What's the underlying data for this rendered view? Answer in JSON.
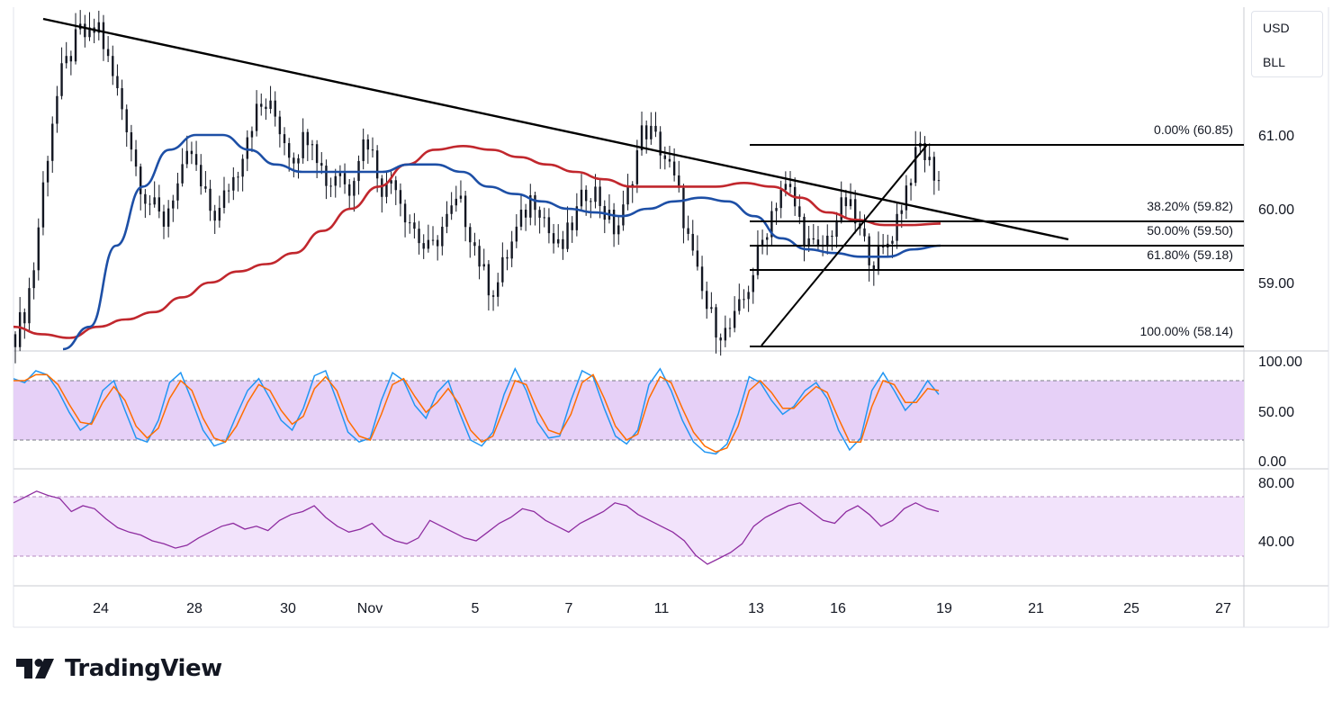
{
  "symbol_legend": {
    "currency": "USD",
    "symbol": "BLL"
  },
  "brand": {
    "name": "TradingView",
    "logo_icon": "tradingview-logo-icon"
  },
  "colors": {
    "candle": "#131722",
    "ma_fast": "#1d4fa6",
    "ma_slow": "#c1272d",
    "trendline": "#000000",
    "band_fill": "#e6d0f7",
    "stoch_k": "#2196f3",
    "stoch_d": "#ff6d00",
    "rsi": "#8e2ca0",
    "rsi_band": "#f2e3fb"
  },
  "chart_data": [
    {
      "type": "candlestick",
      "panel": "price",
      "x_ticks": [
        "24",
        "28",
        "30",
        "Nov",
        "5",
        "7",
        "11",
        "13",
        "16",
        "19",
        "21",
        "25",
        "27"
      ],
      "y_ticks": [
        "61.00",
        "60.00",
        "59.00"
      ],
      "ylim": [
        58.1,
        62.8
      ],
      "series_path": [
        58.3,
        58.6,
        59.2,
        60.3,
        61.2,
        61.8,
        62.1,
        62.4,
        62.3,
        62.5,
        62.0,
        61.6,
        61.2,
        60.6,
        60.2,
        60.0,
        59.8,
        60.2,
        60.4,
        60.8,
        60.3,
        60.0,
        59.9,
        60.3,
        60.5,
        61.0,
        61.3,
        61.4,
        61.3,
        61.0,
        60.7,
        60.9,
        61.1,
        60.6,
        60.3,
        60.6,
        60.2,
        60.7,
        61.0,
        60.6,
        60.2,
        60.5,
        60.0,
        59.8,
        59.5,
        59.4,
        59.7,
        59.9,
        60.1,
        59.8,
        59.4,
        59.0,
        58.9,
        59.3,
        59.6,
        59.9,
        60.2,
        60.0,
        59.6,
        59.4,
        59.7,
        60.0,
        60.3,
        60.2,
        59.9,
        59.7,
        60.0,
        60.6,
        61.1,
        61.0,
        60.8,
        60.5,
        60.1,
        59.5,
        59.0,
        58.6,
        58.4,
        58.3,
        58.5,
        58.8,
        59.2,
        59.6,
        60.0,
        60.3,
        60.2,
        59.8,
        59.5,
        59.4,
        59.6,
        59.9,
        60.1,
        59.8,
        59.5,
        59.3,
        59.4,
        59.7,
        60.1,
        60.5,
        60.85,
        60.6,
        60.4
      ],
      "ma_fast_path": [
        57.2,
        58.4,
        59.5,
        60.3,
        60.8,
        61.0,
        61.0,
        60.8,
        60.6,
        60.5,
        60.5,
        60.5,
        60.5,
        60.6,
        60.6,
        60.5,
        60.3,
        60.2,
        60.1,
        60.0,
        59.95,
        59.9,
        60.0,
        60.1,
        60.15,
        60.1,
        59.9,
        59.6,
        59.45,
        59.4,
        59.35,
        59.35,
        59.45,
        59.5
      ],
      "ma_slow_path": [
        58.4,
        58.3,
        58.25,
        58.4,
        58.5,
        58.6,
        58.8,
        59.0,
        59.15,
        59.25,
        59.4,
        59.7,
        60.0,
        60.3,
        60.6,
        60.8,
        60.85,
        60.8,
        60.7,
        60.6,
        60.5,
        60.4,
        60.3,
        60.3,
        60.3,
        60.3,
        60.35,
        60.3,
        60.15,
        59.95,
        59.85,
        59.78,
        59.78,
        59.8
      ],
      "trendline": {
        "from": {
          "x": "22",
          "y": 62.7
        },
        "to": {
          "x": "21",
          "y": 59.55
        }
      },
      "fibonacci": {
        "high": 60.85,
        "low": 58.14,
        "levels": [
          {
            "label": "0.00% (60.85)",
            "ratio": 0.0,
            "value": 60.85
          },
          {
            "label": "38.20% (59.82)",
            "ratio": 0.382,
            "value": 59.82
          },
          {
            "label": "50.00% (59.50)",
            "ratio": 0.5,
            "value": 59.5
          },
          {
            "label": "61.80% (59.18)",
            "ratio": 0.618,
            "value": 59.18
          },
          {
            "label": "100.00% (58.14)",
            "ratio": 1.0,
            "value": 58.14
          }
        ]
      }
    },
    {
      "type": "line",
      "panel": "stochastic",
      "y_ticks": [
        "100.00",
        "50.00",
        "0.00"
      ],
      "ylim": [
        0,
        100
      ],
      "band": [
        20,
        80
      ],
      "series": [
        {
          "values": [
            82,
            78,
            90,
            86,
            70,
            48,
            30,
            38,
            70,
            80,
            50,
            22,
            18,
            40,
            78,
            88,
            60,
            30,
            14,
            18,
            45,
            70,
            82,
            62,
            40,
            30,
            52,
            85,
            90,
            60,
            28,
            18,
            22,
            60,
            88,
            80,
            55,
            42,
            68,
            80,
            48,
            20,
            14,
            28,
            66,
            92,
            70,
            38,
            22,
            24,
            60,
            90,
            84,
            52,
            24,
            16,
            30,
            76,
            92,
            70,
            40,
            18,
            8,
            6,
            16,
            46,
            84,
            78,
            60,
            46,
            54,
            70,
            78,
            62,
            30,
            10,
            22,
            70,
            88,
            70,
            50,
            62,
            80,
            66
          ]
        },
        {
          "values": [
            80,
            80,
            86,
            86,
            76,
            56,
            38,
            36,
            58,
            74,
            60,
            34,
            22,
            32,
            62,
            80,
            70,
            42,
            22,
            18,
            34,
            58,
            76,
            70,
            50,
            36,
            44,
            72,
            84,
            70,
            40,
            24,
            20,
            46,
            76,
            82,
            64,
            48,
            58,
            72,
            56,
            30,
            18,
            24,
            52,
            80,
            76,
            50,
            30,
            26,
            46,
            78,
            86,
            62,
            34,
            20,
            26,
            62,
            84,
            78,
            52,
            28,
            14,
            8,
            12,
            34,
            70,
            80,
            68,
            52,
            52,
            64,
            74,
            68,
            42,
            18,
            18,
            54,
            80,
            76,
            58,
            58,
            72,
            70
          ]
        }
      ]
    },
    {
      "type": "line",
      "panel": "rsi",
      "y_ticks": [
        "80.00",
        "40.00"
      ],
      "ylim": [
        20,
        90
      ],
      "band": [
        30,
        70
      ],
      "series": [
        {
          "values": [
            66,
            70,
            74,
            71,
            69,
            60,
            64,
            62,
            55,
            49,
            46,
            44,
            40,
            38,
            35,
            37,
            42,
            46,
            50,
            52,
            48,
            50,
            47,
            54,
            58,
            60,
            64,
            56,
            50,
            46,
            48,
            52,
            44,
            40,
            38,
            42,
            54,
            50,
            46,
            42,
            40,
            46,
            52,
            56,
            62,
            60,
            54,
            50,
            46,
            52,
            56,
            60,
            66,
            64,
            58,
            54,
            50,
            46,
            40,
            30,
            24,
            28,
            32,
            38,
            50,
            56,
            60,
            64,
            66,
            60,
            54,
            52,
            60,
            64,
            58,
            50,
            54,
            62,
            66,
            62,
            60
          ]
        }
      ]
    }
  ]
}
